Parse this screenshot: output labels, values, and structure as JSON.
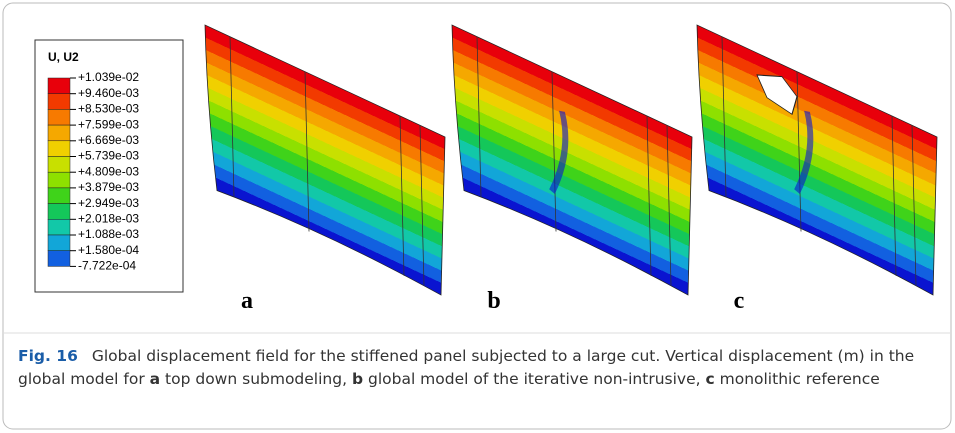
{
  "legend": {
    "title": "U, U2",
    "labels": [
      "+1.039e-02",
      "+9.460e-03",
      "+8.530e-03",
      "+7.599e-03",
      "+6.669e-03",
      "+5.739e-03",
      "+4.809e-03",
      "+3.879e-03",
      "+2.949e-03",
      "+2.018e-03",
      "+1.088e-03",
      "+1.580e-04",
      "-7.722e-04"
    ],
    "colors": [
      "#e8000b",
      "#f23a00",
      "#f77a00",
      "#f5a800",
      "#f0d000",
      "#c8e000",
      "#8ee000",
      "#3fd31a",
      "#14c75a",
      "#12c8a8",
      "#12a6d8",
      "#1260e0",
      "#0a14d0"
    ]
  },
  "panels": [
    {
      "label": "a"
    },
    {
      "label": "b"
    },
    {
      "label": "c"
    }
  ],
  "caption": {
    "label": "Fig. 16",
    "segments": [
      "Global displacement field for the stiffened panel subjected to a large cut. Vertical displacement (m) in the global model for ",
      "a",
      " top down submodeling, ",
      "b",
      " global model of the iterative non-intrusive, ",
      "c",
      " monolithic reference"
    ]
  }
}
